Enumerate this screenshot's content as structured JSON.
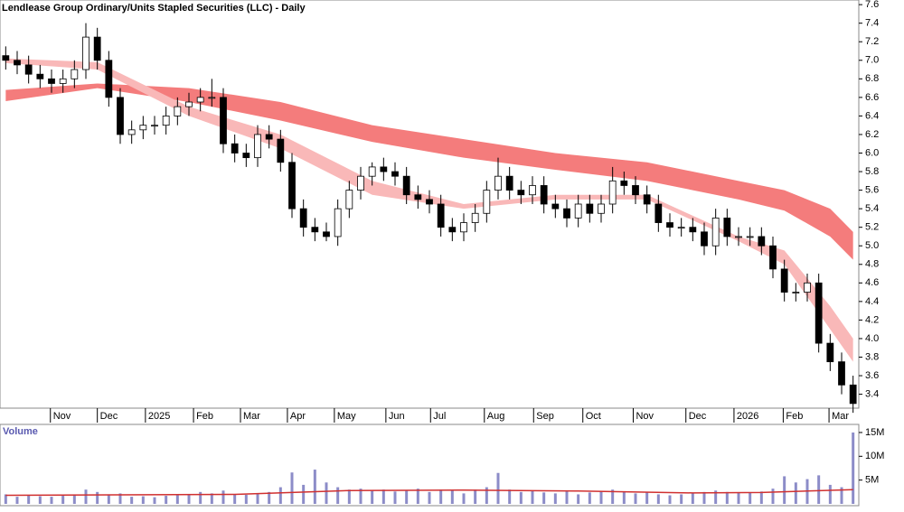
{
  "chart_data": [
    {
      "type": "candlestick",
      "title": "Lendlease Group Ordinary/Units Stapled Securities (LLC) - Daily",
      "xlim": [
        -0.5,
        74.5
      ],
      "xticks": [
        {
          "value": 3.9,
          "label": "Nov"
        },
        {
          "value": 8,
          "label": "Dec"
        },
        {
          "value": 12.2,
          "label": "2025"
        },
        {
          "value": 16.4,
          "label": "Feb"
        },
        {
          "value": 20.5,
          "label": "Mar"
        },
        {
          "value": 24.6,
          "label": "Apr"
        },
        {
          "value": 28.7,
          "label": "May"
        },
        {
          "value": 33.2,
          "label": "Jun"
        },
        {
          "value": 37.1,
          "label": "Jul"
        },
        {
          "value": 41.8,
          "label": "Aug"
        },
        {
          "value": 46.1,
          "label": "Sep"
        },
        {
          "value": 50.4,
          "label": "Oct"
        },
        {
          "value": 54.8,
          "label": "Nov"
        },
        {
          "value": 59.4,
          "label": "Dec"
        },
        {
          "value": 63.6,
          "label": "2026"
        },
        {
          "value": 67.9,
          "label": "Feb"
        },
        {
          "value": 71.9,
          "label": "Mar"
        }
      ],
      "ylim": [
        3.25,
        7.65
      ],
      "yticks": [
        3.4,
        3.6,
        3.8,
        {
          "value": 4,
          "label": "4.0"
        },
        4.2,
        4.4,
        4.6,
        4.8,
        {
          "value": 5,
          "label": "5.0"
        },
        5.2,
        5.4,
        5.6,
        5.8,
        {
          "value": 6,
          "label": "6.0"
        },
        6.2,
        6.4,
        6.6,
        6.8,
        {
          "value": 7,
          "label": "7.0"
        },
        7.2,
        7.4,
        7.6
      ],
      "open": [
        7.05,
        7.0,
        6.95,
        6.85,
        6.8,
        6.75,
        6.8,
        6.9,
        7.25,
        7.0,
        6.6,
        6.2,
        6.25,
        6.3,
        6.3,
        6.4,
        6.5,
        6.55,
        6.6,
        6.6,
        6.1,
        6.0,
        5.95,
        6.2,
        6.15,
        5.9,
        5.4,
        5.2,
        5.15,
        5.1,
        5.4,
        5.6,
        5.75,
        5.85,
        5.8,
        5.75,
        5.55,
        5.5,
        5.45,
        5.2,
        5.15,
        5.25,
        5.35,
        5.6,
        5.75,
        5.6,
        5.55,
        5.65,
        5.45,
        5.4,
        5.3,
        5.45,
        5.35,
        5.45,
        5.7,
        5.65,
        5.55,
        5.45,
        5.25,
        5.2,
        5.2,
        5.15,
        5.0,
        5.3,
        5.1,
        5.1,
        5.1,
        5.0,
        4.75,
        4.5,
        4.5,
        4.6,
        3.95,
        3.75,
        3.5
      ],
      "high": [
        7.15,
        7.1,
        7.05,
        6.95,
        6.9,
        6.9,
        7.0,
        7.4,
        7.35,
        7.1,
        6.7,
        6.35,
        6.4,
        6.4,
        6.5,
        6.6,
        6.65,
        6.7,
        6.8,
        6.7,
        6.2,
        6.1,
        6.3,
        6.3,
        6.25,
        6.0,
        5.5,
        5.3,
        5.25,
        5.5,
        5.7,
        5.85,
        5.9,
        5.95,
        5.9,
        5.85,
        5.65,
        5.6,
        5.55,
        5.3,
        5.35,
        5.45,
        5.7,
        5.95,
        5.85,
        5.7,
        5.75,
        5.75,
        5.55,
        5.5,
        5.55,
        5.55,
        5.55,
        5.85,
        5.8,
        5.75,
        5.65,
        5.55,
        5.35,
        5.3,
        5.3,
        5.25,
        5.4,
        5.4,
        5.2,
        5.2,
        5.2,
        5.1,
        4.85,
        4.6,
        4.7,
        4.7,
        4.05,
        3.85,
        3.6
      ],
      "low": [
        6.9,
        6.85,
        6.75,
        6.7,
        6.65,
        6.65,
        6.7,
        6.8,
        6.9,
        6.5,
        6.1,
        6.1,
        6.15,
        6.2,
        6.2,
        6.3,
        6.4,
        6.45,
        6.5,
        6.0,
        5.9,
        5.85,
        5.85,
        6.05,
        5.8,
        5.3,
        5.1,
        5.05,
        5.05,
        5.0,
        5.3,
        5.5,
        5.65,
        5.7,
        5.65,
        5.45,
        5.4,
        5.35,
        5.1,
        5.05,
        5.05,
        5.15,
        5.25,
        5.5,
        5.5,
        5.45,
        5.45,
        5.35,
        5.3,
        5.2,
        5.2,
        5.25,
        5.25,
        5.35,
        5.55,
        5.45,
        5.35,
        5.15,
        5.1,
        5.1,
        5.05,
        4.9,
        4.9,
        5.0,
        5.0,
        5.0,
        4.9,
        4.65,
        4.4,
        4.4,
        4.4,
        3.85,
        3.65,
        3.4,
        3.2
      ],
      "close": [
        7.0,
        6.95,
        6.85,
        6.8,
        6.75,
        6.8,
        6.9,
        7.25,
        7.0,
        6.6,
        6.2,
        6.25,
        6.3,
        6.3,
        6.4,
        6.5,
        6.55,
        6.6,
        6.6,
        6.1,
        6.0,
        5.95,
        6.2,
        6.15,
        5.9,
        5.4,
        5.2,
        5.15,
        5.1,
        5.4,
        5.6,
        5.75,
        5.85,
        5.8,
        5.75,
        5.55,
        5.5,
        5.45,
        5.2,
        5.15,
        5.25,
        5.35,
        5.6,
        5.75,
        5.6,
        5.55,
        5.65,
        5.45,
        5.4,
        5.3,
        5.45,
        5.35,
        5.45,
        5.7,
        5.65,
        5.55,
        5.45,
        5.25,
        5.2,
        5.2,
        5.15,
        5.0,
        5.3,
        5.1,
        5.1,
        5.1,
        5.0,
        4.75,
        4.5,
        4.5,
        4.6,
        3.95,
        3.75,
        3.5,
        3.3
      ],
      "bands": [
        {
          "color": "#f47c7c",
          "x": [
            0,
            8,
            16,
            24,
            32,
            40,
            48,
            56,
            64,
            68,
            72,
            74
          ],
          "upper": [
            6.68,
            6.75,
            6.7,
            6.55,
            6.3,
            6.15,
            6.0,
            5.9,
            5.7,
            5.6,
            5.4,
            5.15
          ],
          "lower": [
            6.56,
            6.7,
            6.55,
            6.35,
            6.12,
            5.95,
            5.82,
            5.7,
            5.5,
            5.38,
            5.1,
            4.85
          ]
        },
        {
          "color": "#f9b8b8",
          "x": [
            0,
            8,
            16,
            24,
            32,
            40,
            48,
            56,
            64,
            68,
            72,
            74
          ],
          "upper": [
            7.02,
            6.98,
            6.5,
            6.2,
            5.7,
            5.45,
            5.55,
            5.55,
            5.1,
            4.95,
            4.35,
            4.0
          ],
          "lower": [
            6.97,
            6.9,
            6.4,
            6.05,
            5.55,
            5.4,
            5.5,
            5.5,
            5.05,
            4.8,
            4.1,
            3.75
          ]
        }
      ]
    },
    {
      "type": "bar",
      "title": "Volume",
      "color": "#8c8cc8",
      "xlim": [
        -0.5,
        74.5
      ],
      "ylim": [
        0,
        16.7
      ],
      "yticks": [
        {
          "value": 5,
          "label": "5M"
        },
        {
          "value": 10,
          "label": "10M"
        },
        {
          "value": 15,
          "label": "15M"
        }
      ],
      "values": [
        2,
        1.5,
        1.8,
        1.6,
        1.5,
        1.7,
        2,
        3,
        2.5,
        2,
        2.2,
        1.5,
        1.6,
        1.4,
        1.7,
        1.8,
        2,
        2.5,
        2.2,
        2.8,
        2,
        1.9,
        2.2,
        2.5,
        3.5,
        6.6,
        4,
        7.2,
        4.5,
        3.5,
        3,
        3.2,
        2.8,
        3,
        2.6,
        2.8,
        3.2,
        2.5,
        3,
        2.8,
        2.2,
        3,
        3.5,
        6.5,
        3,
        2.5,
        2.8,
        2.4,
        2.2,
        2.6,
        2,
        2.4,
        2.6,
        3,
        2.5,
        2.2,
        2.5,
        2,
        1.8,
        2,
        2.2,
        2.5,
        2.8,
        2.5,
        2.4,
        2.3,
        2.6,
        3.2,
        5.8,
        4.5,
        5.2,
        6,
        4,
        3.5,
        15
      ],
      "average": {
        "color": "#d03030",
        "x": [
          0,
          10,
          20,
          30,
          40,
          50,
          60,
          66,
          70,
          74
        ],
        "values": [
          1.8,
          1.9,
          2.0,
          2.8,
          2.9,
          2.7,
          2.3,
          2.4,
          2.7,
          3.0
        ]
      }
    }
  ]
}
